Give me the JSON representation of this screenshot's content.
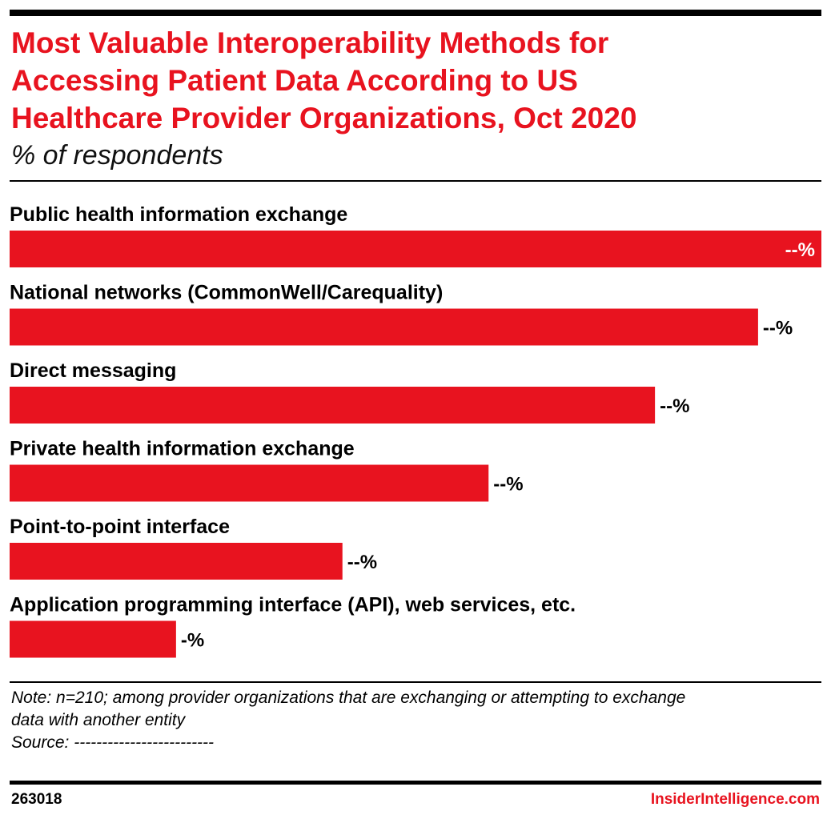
{
  "header": {
    "title_lines": [
      "Most Valuable Interoperability Methods for",
      "Accessing Patient Data According to US",
      "Healthcare Provider Organizations, Oct 2020"
    ],
    "subtitle": "% of respondents"
  },
  "colors": {
    "accent": "#e8131f",
    "text": "#000000",
    "value_on_bar": "#ffffff"
  },
  "chart_data": {
    "type": "bar",
    "orientation": "horizontal",
    "title": "Most Valuable Interoperability Methods for Accessing Patient Data According to US Healthcare Provider Organizations, Oct 2020",
    "subtitle": "% of respondents",
    "categories": [
      "Public health information exchange",
      "National networks (CommonWell/Carequality)",
      "Direct messaging",
      "Private health information exchange",
      "Point-to-point interface",
      "Application programming interface (API), web services, etc."
    ],
    "values": [
      100,
      92.2,
      79.5,
      59,
      41,
      20.5
    ],
    "value_labels": [
      "--%",
      "--%",
      "--%",
      "--%",
      "--%",
      "-%"
    ],
    "xlim": [
      0,
      100
    ],
    "grid": false,
    "legend": "none"
  },
  "footer": {
    "note_lines": [
      "Note: n=210; among provider organizations that are exchanging or attempting to exchange",
      "data with another entity",
      "Source: -------------------------"
    ],
    "chart_id": "263018",
    "brand": "InsiderIntelligence.com"
  }
}
